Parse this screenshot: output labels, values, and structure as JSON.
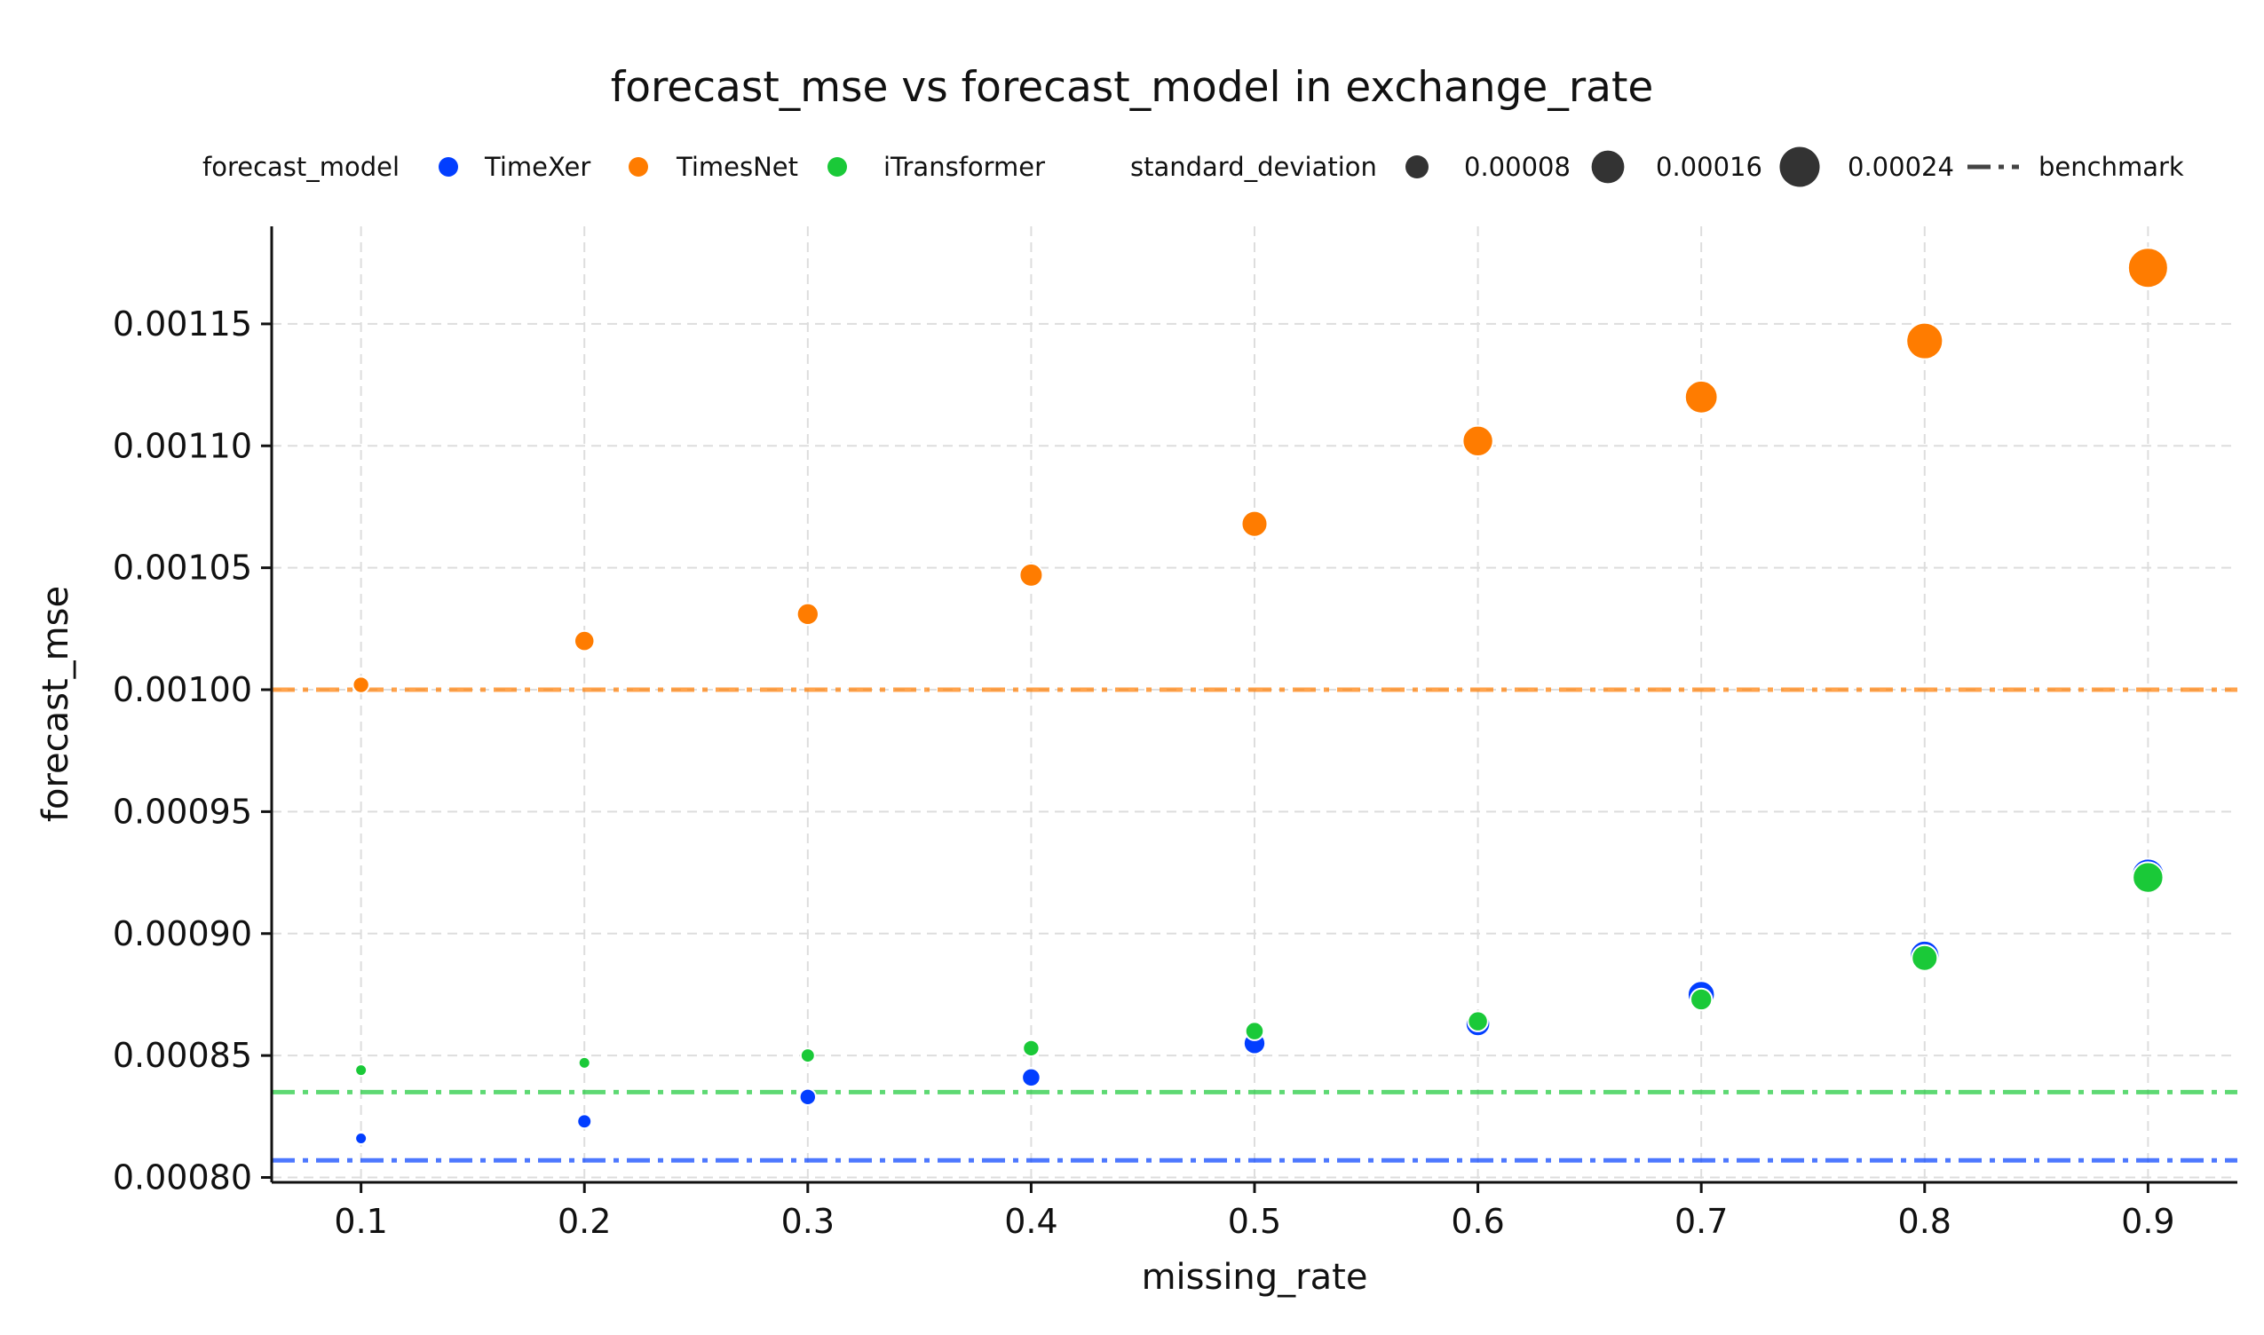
{
  "chart_data": {
    "type": "scatter",
    "title": "forecast_mse vs forecast_model in exchange_rate",
    "xlabel": "missing_rate",
    "ylabel": "forecast_mse",
    "xlim": [
      0.06,
      0.94
    ],
    "ylim": [
      0.000798,
      0.00119
    ],
    "x_ticks": [
      0.1,
      0.2,
      0.3,
      0.4,
      0.5,
      0.6,
      0.7,
      0.8,
      0.9
    ],
    "x_tick_labels": [
      "0.1",
      "0.2",
      "0.3",
      "0.4",
      "0.5",
      "0.6",
      "0.7",
      "0.8",
      "0.9"
    ],
    "y_ticks": [
      0.0008,
      0.00085,
      0.0009,
      0.00095,
      0.001,
      0.00105,
      0.0011,
      0.00115
    ],
    "y_tick_labels": [
      "0.00080",
      "0.00085",
      "0.00090",
      "0.00095",
      "0.00100",
      "0.00105",
      "0.00110",
      "0.00115"
    ],
    "grid": true,
    "legend": {
      "placement": "top",
      "hue_title": "forecast_model",
      "size_title": "standard_deviation",
      "size_entries": [
        {
          "label": "0.00008",
          "value": 8e-05
        },
        {
          "label": "0.00016",
          "value": 0.00016
        },
        {
          "label": "0.00024",
          "value": 0.00024
        }
      ],
      "benchmark_label": "benchmark"
    },
    "series": [
      {
        "name": "TimeXer",
        "color": "#023eff",
        "benchmark": 0.000807,
        "x": [
          0.1,
          0.2,
          0.3,
          0.4,
          0.5,
          0.6,
          0.7,
          0.8,
          0.9
        ],
        "y": [
          0.000816,
          0.000823,
          0.000833,
          0.000841,
          0.000855,
          0.000863,
          0.000875,
          0.000891,
          0.000924
        ],
        "std": [
          2e-05,
          3e-05,
          4e-05,
          5e-05,
          7e-05,
          9e-05,
          0.00011,
          0.00013,
          0.00016
        ]
      },
      {
        "name": "TimesNet",
        "color": "#ff7c00",
        "benchmark": 0.001,
        "x": [
          0.1,
          0.2,
          0.3,
          0.4,
          0.5,
          0.6,
          0.7,
          0.8,
          0.9
        ],
        "y": [
          0.001002,
          0.00102,
          0.001031,
          0.001047,
          0.001068,
          0.001102,
          0.00112,
          0.001143,
          0.001173
        ],
        "std": [
          4e-05,
          6e-05,
          7e-05,
          8e-05,
          0.0001,
          0.00014,
          0.00016,
          0.0002,
          0.00024
        ]
      },
      {
        "name": "iTransformer",
        "color": "#1ac938",
        "benchmark": 0.000835,
        "x": [
          0.1,
          0.2,
          0.3,
          0.4,
          0.5,
          0.6,
          0.7,
          0.8,
          0.9
        ],
        "y": [
          0.000844,
          0.000847,
          0.00085,
          0.000853,
          0.00086,
          0.000864,
          0.000873,
          0.00089,
          0.000923
        ],
        "std": [
          2e-05,
          2e-05,
          3e-05,
          4e-05,
          5e-05,
          6e-05,
          7e-05,
          0.0001,
          0.00014
        ]
      }
    ]
  }
}
